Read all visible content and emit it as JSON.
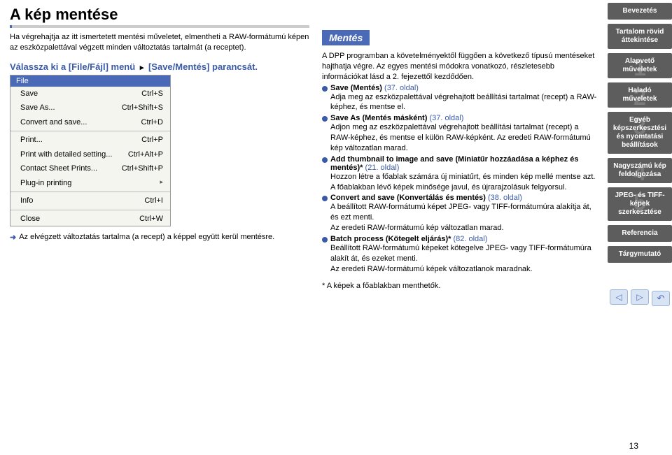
{
  "title": "A kép mentése",
  "intro": "Ha végrehajtja az itt ismertetett mentési műveletet, elmentheti a RAW-formátumú képen az eszközpalettával végzett minden változtatás tartalmát (a receptet).",
  "step_prefix": "Válassza ki a [File/Fájl] menü",
  "step_suffix": "[Save/Mentés] parancsát.",
  "menu": {
    "title": "File",
    "rows": [
      {
        "label": "Save",
        "shortcut": "Ctrl+S"
      },
      {
        "label": "Save As...",
        "shortcut": "Ctrl+Shift+S"
      },
      {
        "label": "Convert and save...",
        "shortcut": "Ctrl+D"
      },
      {
        "sep": true
      },
      {
        "label": "Print...",
        "shortcut": "Ctrl+P"
      },
      {
        "label": "Print with detailed setting...",
        "shortcut": "Ctrl+Alt+P"
      },
      {
        "label": "Contact Sheet Prints...",
        "shortcut": "Ctrl+Shift+P"
      },
      {
        "label": "Plug-in printing",
        "shortcut": "",
        "arrow": true
      },
      {
        "sep": true
      },
      {
        "label": "Info",
        "shortcut": "Ctrl+I"
      },
      {
        "sep": true
      },
      {
        "label": "Close",
        "shortcut": "Ctrl+W"
      }
    ]
  },
  "note": "Az elvégzett változtatás tartalma (a recept) a képpel együtt kerül mentésre.",
  "save_heading": "Mentés",
  "save_intro1": "A DPP programban a követelményektől függően a következő típusú mentéseket hajthatja végre. Az egyes mentési módokra vonatkozó, részletesebb információkat lásd a 2. fejezettől kezdődően.",
  "bullets": [
    {
      "title": "Save (Mentés)",
      "page": "(37. oldal)",
      "body": "Adja meg az eszközpalettával végrehajtott beállítási tartalmat (recept) a RAW-képhez, és mentse el."
    },
    {
      "title": "Save As (Mentés másként)",
      "page": "(37. oldal)",
      "body": "Adjon meg az eszközpalettával végrehajtott beállítási tartalmat (recept) a RAW-képhez, és mentse el külön RAW-képként. Az eredeti RAW-formátumú kép változatlan marad."
    },
    {
      "title": "Add thumbnail to image and save (Miniatűr hozzáadása a képhez és mentés)*",
      "page": "(21. oldal)",
      "body": "Hozzon létre a főablak számára új miniatűrt, és minden kép mellé mentse azt.\nA főablakban lévő képek minősége javul, és újrarajzolásuk felgyorsul."
    },
    {
      "title": "Convert and save (Konvertálás és mentés)",
      "page": "(38. oldal)",
      "body": "A beállított RAW-formátumú képet JPEG- vagy TIFF-formátumúra alakítja át, és ezt menti.\nAz eredeti RAW-formátumú kép változatlan marad."
    },
    {
      "title": "Batch process (Kötegelt eljárás)*",
      "page": "(82. oldal)",
      "body": "Beállított RAW-formátumú képeket kötegelve JPEG- vagy TIFF-formátumúra alakít át, és ezeket menti.\nAz eredeti RAW-formátumú képek változatlanok maradnak."
    }
  ],
  "footnote": "* A képek a főablakban menthetők.",
  "nav": [
    {
      "label": "Bevezetés"
    },
    {
      "label": "Tartalom rövid áttekintése"
    },
    {
      "label": "Alapvető műveletek",
      "num": "1"
    },
    {
      "label": "Haladó műveletek",
      "num": "2"
    },
    {
      "label": "Egyéb képszerkesztési és nyomtatási beállítások",
      "num": "3"
    },
    {
      "label": "Nagyszámú kép feldolgozása",
      "num": "4"
    },
    {
      "label": "JPEG- és TIFF-képek szerkesztése",
      "num": "5"
    },
    {
      "label": "Referencia"
    },
    {
      "label": "Tárgymutató"
    }
  ],
  "page_number": "13",
  "colors": {
    "accent": "#4a6ab8",
    "nav_bg": "#5d5d5d",
    "arrow_bg": "#d8e4f4"
  }
}
